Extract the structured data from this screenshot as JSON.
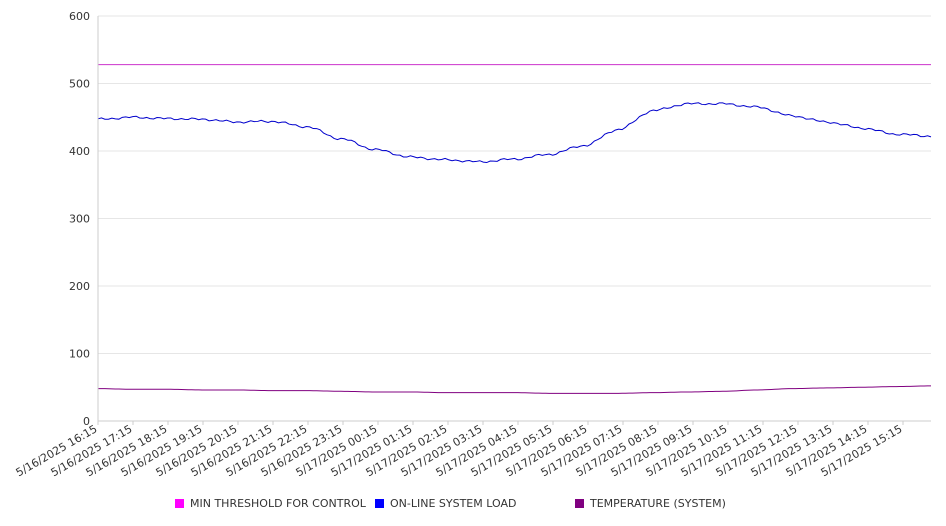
{
  "chart_data": {
    "type": "line",
    "ylim": [
      0,
      600
    ],
    "yticks": [
      0,
      100,
      200,
      300,
      400,
      500,
      600
    ],
    "grid": true,
    "legend_position": "bottom",
    "x_tick_labels": [
      "5/16/2025 16:15",
      "5/16/2025 17:15",
      "5/16/2025 18:15",
      "5/16/2025 19:15",
      "5/16/2025 20:15",
      "5/16/2025 21:15",
      "5/16/2025 22:15",
      "5/16/2025 23:15",
      "5/17/2025 00:15",
      "5/17/2025 01:15",
      "5/17/2025 02:15",
      "5/17/2025 03:15",
      "5/17/2025 04:15",
      "5/17/2025 05:15",
      "5/17/2025 06:15",
      "5/17/2025 07:15",
      "5/17/2025 08:15",
      "5/17/2025 09:15",
      "5/17/2025 10:15",
      "5/17/2025 11:15",
      "5/17/2025 12:15",
      "5/17/2025 13:15",
      "5/17/2025 14:15",
      "5/17/2025 15:15"
    ],
    "series": [
      {
        "name": "MIN THRESHOLD FOR CONTROL",
        "color": "#cc33cc",
        "legend_color": "#ff00ff",
        "values": [
          528,
          528,
          528,
          528,
          528,
          528,
          528,
          528,
          528,
          528,
          528,
          528,
          528,
          528,
          528,
          528,
          528,
          528,
          528,
          528,
          528,
          528,
          528,
          528,
          528
        ]
      },
      {
        "name": "ON-LINE SYSTEM LOAD",
        "color": "#0000cc",
        "legend_color": "#0000ff",
        "values": [
          447,
          450,
          448,
          447,
          443,
          444,
          436,
          418,
          402,
          391,
          387,
          384,
          388,
          395,
          408,
          432,
          460,
          470,
          470,
          465,
          452,
          443,
          434,
          425,
          422
        ]
      },
      {
        "name": "TEMPERATURE (SYSTEM)",
        "color": "#800080",
        "legend_color": "#800080",
        "values": [
          48,
          47,
          47,
          46,
          46,
          45,
          45,
          44,
          43,
          43,
          42,
          42,
          42,
          41,
          41,
          41,
          42,
          43,
          44,
          46,
          48,
          49,
          50,
          51,
          52
        ]
      }
    ]
  }
}
